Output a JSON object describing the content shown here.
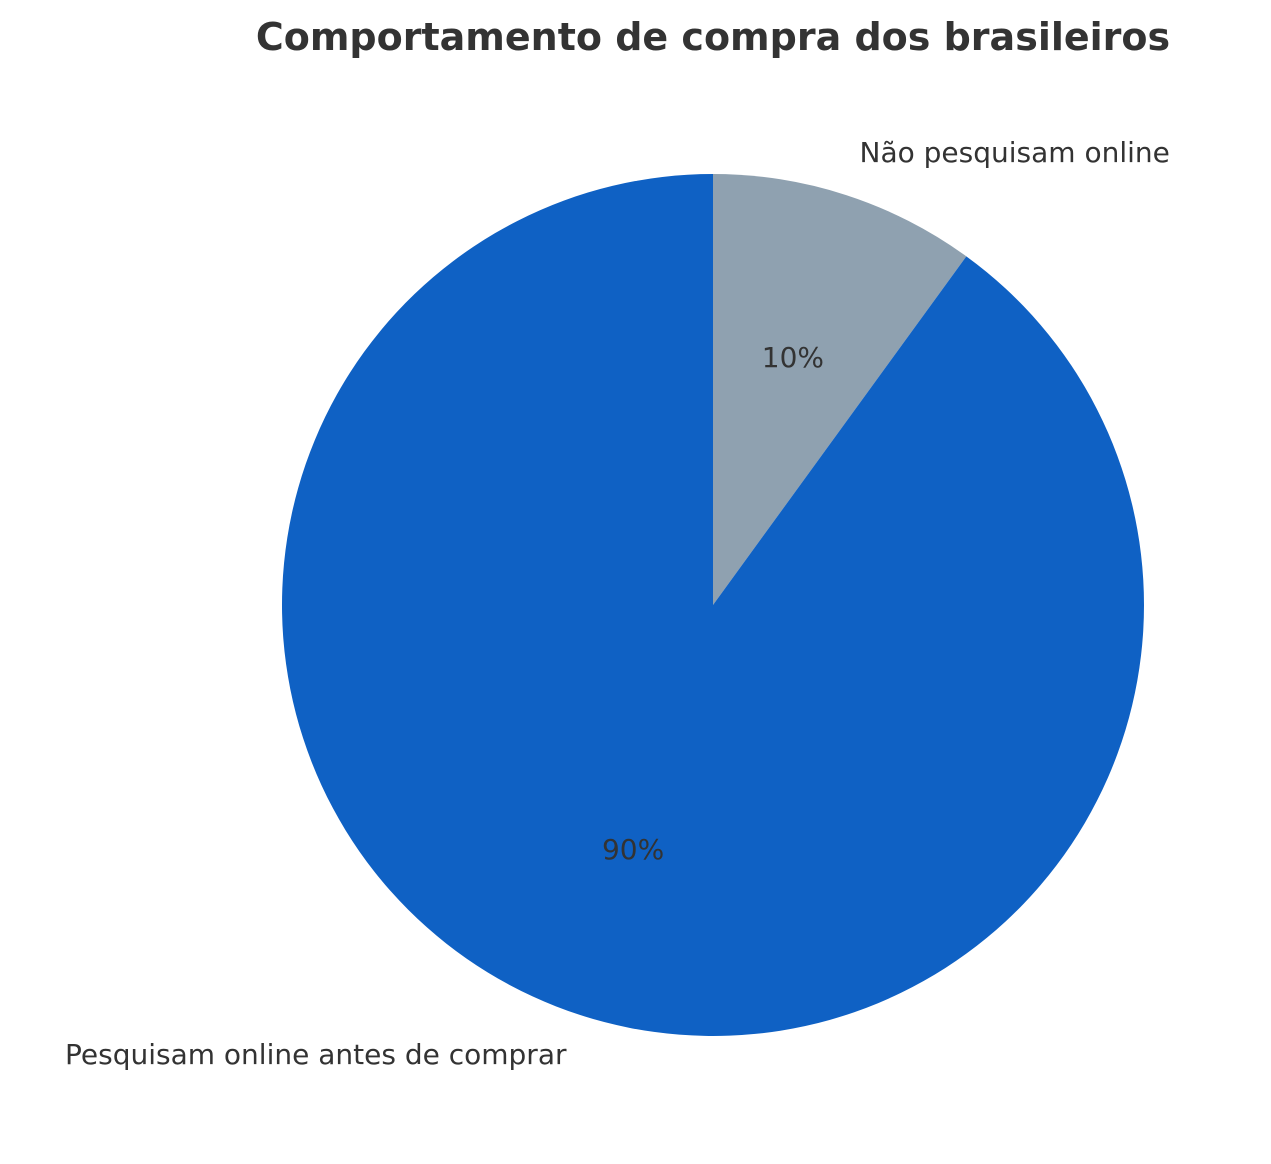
{
  "chart_data": {
    "type": "pie",
    "title": "Comportamento de compra dos brasileiros",
    "slices": [
      {
        "label": "Não pesquisam online",
        "value": 10,
        "pct_label": "10%",
        "color": "#8fa1b0"
      },
      {
        "label": "Pesquisam online antes de comprar",
        "value": 90,
        "pct_label": "90%",
        "color": "#0f61c4"
      }
    ],
    "start_angle": 90,
    "direction": "clockwise",
    "legend": "none"
  }
}
